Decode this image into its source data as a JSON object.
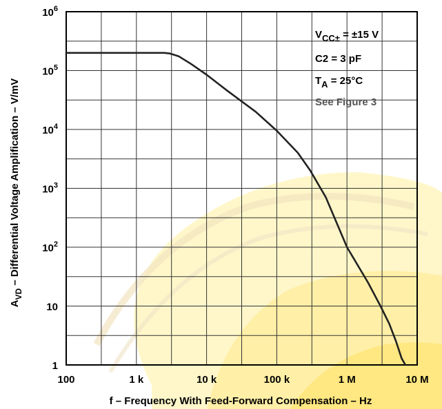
{
  "chart_data": {
    "type": "line",
    "xscale": "log",
    "yscale": "log",
    "xlim": [
      100,
      10000000
    ],
    "ylim": [
      1,
      1000000
    ],
    "grid": true,
    "xlabel": "f – Frequency With Feed-Forward Compensation – Hz",
    "ylabel": {
      "base": "A",
      "sub": "VD",
      "rest": " – Differential Voltage Amplification – V/mV"
    },
    "x_ticks": [
      {
        "value": 100,
        "label": "100"
      },
      {
        "value": 1000,
        "label": "1 k"
      },
      {
        "value": 10000,
        "label": "10 k"
      },
      {
        "value": 100000,
        "label": "100 k"
      },
      {
        "value": 1000000,
        "label": "1 M"
      },
      {
        "value": 10000000,
        "label": "10 M"
      }
    ],
    "y_ticks": [
      {
        "value": 1,
        "base": "1",
        "exp": ""
      },
      {
        "value": 10,
        "base": "10",
        "exp": ""
      },
      {
        "value": 100,
        "base": "10",
        "exp": "2"
      },
      {
        "value": 1000,
        "base": "10",
        "exp": "3"
      },
      {
        "value": 10000,
        "base": "10",
        "exp": "4"
      },
      {
        "value": 100000,
        "base": "10",
        "exp": "5"
      },
      {
        "value": 1000000,
        "base": "10",
        "exp": "6"
      }
    ],
    "series": [
      {
        "color": "#222222",
        "points": [
          [
            100,
            200000
          ],
          [
            1000,
            200000
          ],
          [
            2500,
            200000
          ],
          [
            3000,
            195000
          ],
          [
            4000,
            175000
          ],
          [
            6000,
            130000
          ],
          [
            10000,
            85000
          ],
          [
            20000,
            45000
          ],
          [
            50000,
            20000
          ],
          [
            100000,
            9500
          ],
          [
            200000,
            4000
          ],
          [
            300000,
            2000
          ],
          [
            500000,
            700
          ],
          [
            1000000,
            100
          ],
          [
            2000000,
            25
          ],
          [
            3000000,
            10
          ],
          [
            4000000,
            5
          ],
          [
            5000000,
            2.5
          ],
          [
            6000000,
            1.3
          ],
          [
            6800000,
            1
          ]
        ]
      }
    ],
    "annotations": {
      "line1": {
        "base": "V",
        "sub": "CC±",
        "rest": " = ±15 V"
      },
      "line2": "C2 = 3 pF",
      "line3": {
        "base": "T",
        "sub": "A",
        "rest": " = 25°C"
      },
      "line4": "See Figure 3"
    },
    "colors": {
      "grid": "#333333",
      "annotation_gray": "#555555"
    }
  }
}
